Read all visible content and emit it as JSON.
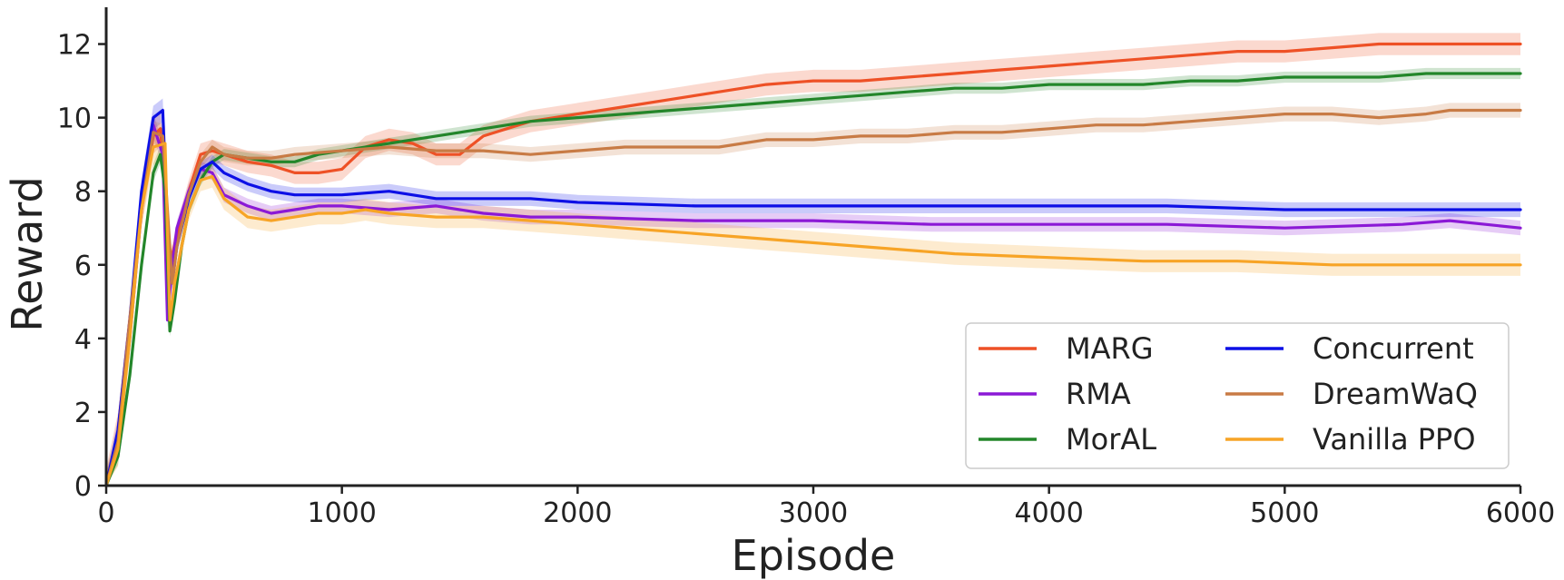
{
  "chart_data": {
    "type": "line",
    "title": "",
    "xlabel": "Episode",
    "ylabel": "Reward",
    "xlim": [
      0,
      6000
    ],
    "ylim": [
      0,
      13
    ],
    "xticks": [
      0,
      1000,
      2000,
      3000,
      4000,
      5000,
      6000
    ],
    "yticks": [
      0,
      2,
      4,
      6,
      8,
      10,
      12
    ],
    "legend_position": "bottom-right",
    "series": [
      {
        "name": "MARG",
        "color": "#ee5126",
        "x": [
          0,
          50,
          100,
          150,
          200,
          230,
          250,
          270,
          300,
          350,
          400,
          450,
          500,
          600,
          700,
          800,
          900,
          1000,
          1100,
          1200,
          1300,
          1400,
          1500,
          1600,
          1800,
          2000,
          2200,
          2400,
          2600,
          2800,
          3000,
          3200,
          3400,
          3600,
          3800,
          4000,
          4200,
          4400,
          4600,
          4800,
          5000,
          5200,
          5400,
          5600,
          5800,
          6000
        ],
        "y": [
          0,
          1.5,
          4.5,
          7.5,
          9.5,
          9.7,
          8.0,
          6.0,
          6.8,
          8.0,
          9.0,
          9.1,
          9.0,
          8.8,
          8.7,
          8.5,
          8.5,
          8.6,
          9.2,
          9.4,
          9.3,
          9.0,
          9.0,
          9.5,
          9.9,
          10.1,
          10.3,
          10.5,
          10.7,
          10.9,
          11.0,
          11.0,
          11.1,
          11.2,
          11.3,
          11.4,
          11.5,
          11.6,
          11.7,
          11.8,
          11.8,
          11.9,
          12.0,
          12.0,
          12.0,
          12.0
        ],
        "band": 0.3
      },
      {
        "name": "RMA",
        "color": "#8b19d6",
        "x": [
          0,
          50,
          100,
          150,
          200,
          240,
          260,
          280,
          300,
          350,
          400,
          450,
          500,
          600,
          700,
          800,
          900,
          1000,
          1200,
          1400,
          1600,
          1800,
          2000,
          2500,
          3000,
          3500,
          4000,
          4500,
          5000,
          5500,
          5700,
          6000
        ],
        "y": [
          0,
          1.2,
          4.0,
          7.5,
          9.8,
          9.0,
          4.5,
          6.0,
          7.0,
          8.0,
          8.6,
          8.5,
          7.9,
          7.6,
          7.4,
          7.5,
          7.6,
          7.6,
          7.5,
          7.6,
          7.4,
          7.3,
          7.3,
          7.2,
          7.2,
          7.1,
          7.1,
          7.1,
          7.0,
          7.1,
          7.2,
          7.0
        ],
        "band": 0.2
      },
      {
        "name": "MorAL",
        "color": "#23862a",
        "x": [
          0,
          50,
          100,
          150,
          200,
          230,
          250,
          270,
          290,
          320,
          350,
          400,
          450,
          500,
          600,
          700,
          800,
          900,
          1000,
          1200,
          1400,
          1600,
          1800,
          2000,
          2200,
          2400,
          2600,
          2800,
          3000,
          3200,
          3400,
          3600,
          3800,
          4000,
          4200,
          4400,
          4600,
          4800,
          5000,
          5200,
          5400,
          5600,
          5800,
          6000
        ],
        "y": [
          0,
          0.8,
          3.0,
          6.0,
          8.5,
          9.0,
          8.0,
          4.2,
          5.0,
          6.5,
          7.5,
          8.3,
          8.8,
          9.0,
          8.9,
          8.8,
          8.8,
          9.0,
          9.1,
          9.3,
          9.5,
          9.7,
          9.9,
          10.0,
          10.1,
          10.2,
          10.3,
          10.4,
          10.5,
          10.6,
          10.7,
          10.8,
          10.8,
          10.9,
          10.9,
          10.9,
          11.0,
          11.0,
          11.1,
          11.1,
          11.1,
          11.2,
          11.2,
          11.2
        ],
        "band": 0.15
      },
      {
        "name": "Concurrent",
        "color": "#0d10e6",
        "x": [
          0,
          50,
          100,
          150,
          200,
          240,
          260,
          280,
          300,
          350,
          400,
          450,
          500,
          600,
          700,
          800,
          1000,
          1200,
          1400,
          1600,
          1800,
          2000,
          2500,
          3000,
          3500,
          4000,
          4500,
          5000,
          5500,
          6000
        ],
        "y": [
          0,
          1.5,
          4.5,
          8.0,
          10.0,
          10.2,
          7.0,
          5.5,
          6.5,
          7.8,
          8.6,
          8.8,
          8.5,
          8.2,
          8.0,
          7.9,
          7.9,
          8.0,
          7.8,
          7.8,
          7.8,
          7.7,
          7.6,
          7.6,
          7.6,
          7.6,
          7.6,
          7.5,
          7.5,
          7.5
        ],
        "band": 0.2
      },
      {
        "name": "DreamWaQ",
        "color": "#c87b45",
        "x": [
          0,
          50,
          100,
          150,
          200,
          240,
          260,
          280,
          300,
          350,
          400,
          450,
          500,
          600,
          700,
          800,
          1000,
          1200,
          1400,
          1600,
          1800,
          2000,
          2200,
          2400,
          2600,
          2800,
          3000,
          3200,
          3400,
          3600,
          3800,
          4000,
          4200,
          4400,
          4600,
          4800,
          5000,
          5200,
          5400,
          5600,
          5700,
          5800,
          6000
        ],
        "y": [
          0,
          1.2,
          4.5,
          7.5,
          9.6,
          9.5,
          7.5,
          5.5,
          6.5,
          7.9,
          8.8,
          9.2,
          9.0,
          8.9,
          8.9,
          9.0,
          9.1,
          9.2,
          9.1,
          9.1,
          9.0,
          9.1,
          9.2,
          9.2,
          9.2,
          9.4,
          9.4,
          9.5,
          9.5,
          9.6,
          9.6,
          9.7,
          9.8,
          9.8,
          9.9,
          10.0,
          10.1,
          10.1,
          10.0,
          10.1,
          10.2,
          10.2,
          10.2
        ],
        "band": 0.2
      },
      {
        "name": "Vanilla PPO",
        "color": "#f7a426",
        "x": [
          0,
          50,
          100,
          150,
          200,
          250,
          270,
          290,
          320,
          350,
          400,
          450,
          500,
          600,
          700,
          800,
          900,
          1000,
          1100,
          1200,
          1400,
          1600,
          1800,
          2000,
          2400,
          2800,
          3200,
          3600,
          4000,
          4400,
          4800,
          5200,
          5600,
          6000
        ],
        "y": [
          0,
          1.0,
          4.0,
          7.5,
          9.2,
          9.3,
          4.5,
          5.5,
          6.5,
          7.5,
          8.3,
          8.4,
          7.8,
          7.3,
          7.2,
          7.3,
          7.4,
          7.4,
          7.5,
          7.4,
          7.3,
          7.3,
          7.2,
          7.1,
          6.9,
          6.7,
          6.5,
          6.3,
          6.2,
          6.1,
          6.1,
          6.0,
          6.0,
          6.0
        ],
        "band": 0.3
      }
    ]
  }
}
